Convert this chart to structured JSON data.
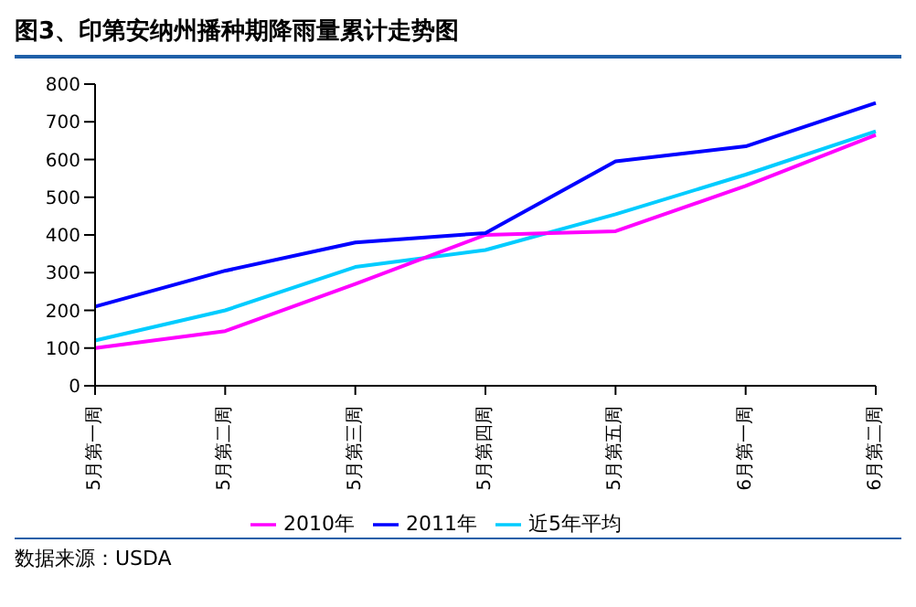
{
  "chart_data": {
    "type": "line",
    "title": "图3、印第安纳州播种期降雨量累计走势图",
    "categories": [
      "5月第一周",
      "5月第二周",
      "5月第三周",
      "5月第四周",
      "5月第五周",
      "6月第一周",
      "6月第二周"
    ],
    "series": [
      {
        "name": "近5年平均",
        "color": "#00ccff",
        "values": [
          120,
          200,
          315,
          360,
          455,
          560,
          675
        ]
      },
      {
        "name": "2010年",
        "color": "#ff00ff",
        "values": [
          100,
          145,
          270,
          400,
          410,
          530,
          665
        ]
      },
      {
        "name": "2011年",
        "color": "#0000ff",
        "values": [
          210,
          305,
          380,
          405,
          595,
          635,
          750
        ]
      }
    ],
    "ylim": [
      0,
      800
    ],
    "yticks": [
      0,
      100,
      200,
      300,
      400,
      500,
      600,
      700,
      800
    ],
    "grid": false,
    "legend": "bottom",
    "marker": "none",
    "line_style": "solid",
    "annotations": [
      "数据来源：USDA"
    ]
  }
}
